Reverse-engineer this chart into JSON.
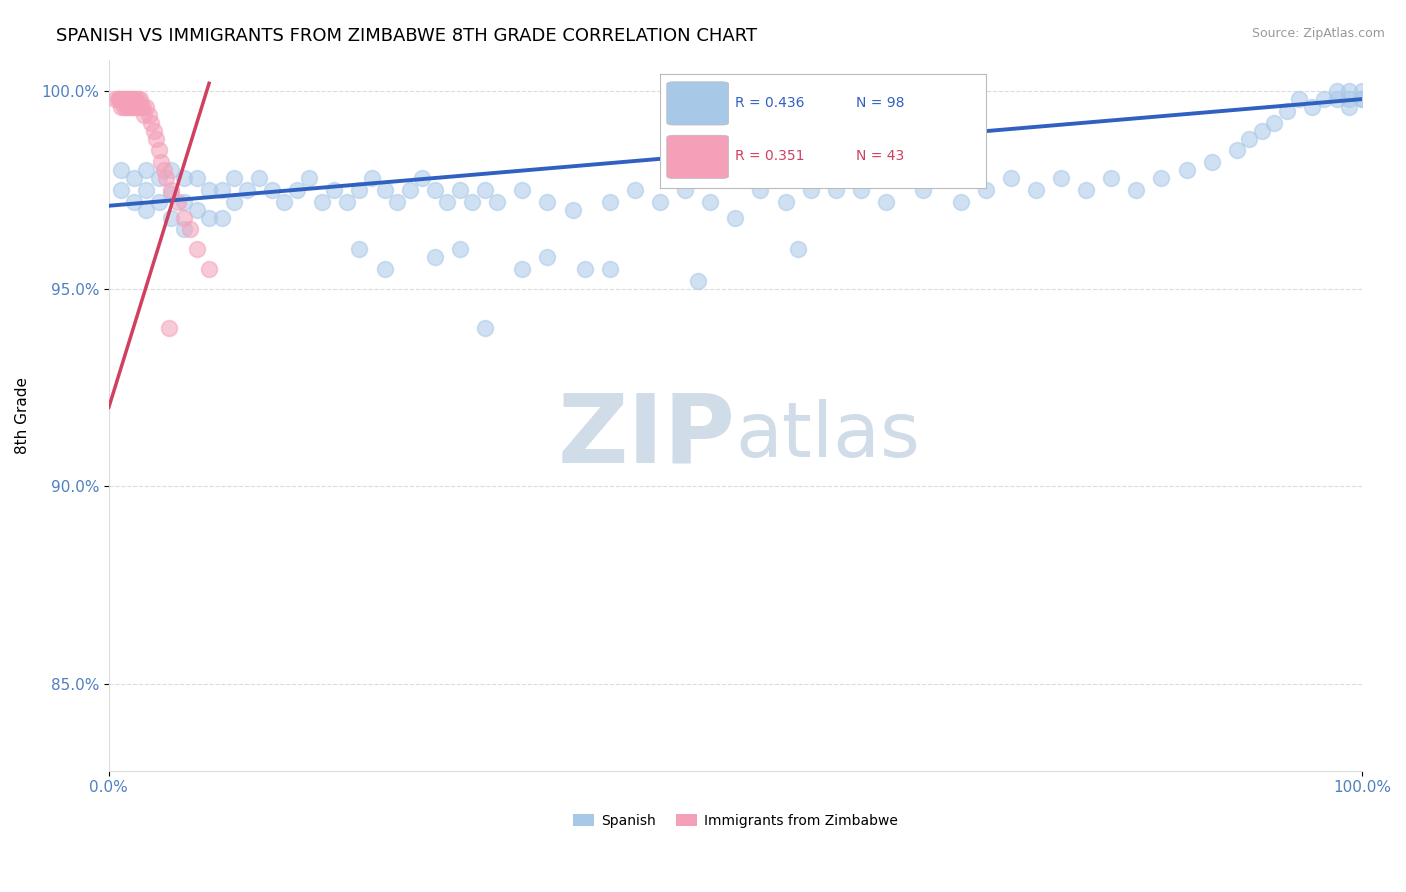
{
  "title": "SPANISH VS IMMIGRANTS FROM ZIMBABWE 8TH GRADE CORRELATION CHART",
  "source_text": "Source: ZipAtlas.com",
  "ylabel": "8th Grade",
  "xlim": [
    0.0,
    1.0
  ],
  "ylim": [
    0.828,
    1.008
  ],
  "yticks": [
    0.85,
    0.9,
    0.95,
    1.0
  ],
  "ytick_labels": [
    "85.0%",
    "90.0%",
    "95.0%",
    "100.0%"
  ],
  "xticks": [
    0.0,
    1.0
  ],
  "xtick_labels": [
    "0.0%",
    "100.0%"
  ],
  "blue_R": 0.436,
  "blue_N": 98,
  "pink_R": 0.351,
  "pink_N": 43,
  "blue_color": "#a8c8e8",
  "pink_color": "#f4a0b8",
  "blue_line_color": "#3060c0",
  "pink_line_color": "#d04060",
  "legend_blue_label": "Spanish",
  "legend_pink_label": "Immigrants from Zimbabwe",
  "watermark_zip": "ZIP",
  "watermark_atlas": "atlas",
  "watermark_color": "#d0dce8",
  "title_fontsize": 13,
  "tick_label_color": "#5080c0",
  "grid_color": "#cccccc",
  "background_color": "#ffffff",
  "blue_scatter_x": [
    0.01,
    0.01,
    0.02,
    0.02,
    0.03,
    0.03,
    0.03,
    0.04,
    0.04,
    0.05,
    0.05,
    0.05,
    0.06,
    0.06,
    0.06,
    0.07,
    0.07,
    0.08,
    0.08,
    0.09,
    0.09,
    0.1,
    0.1,
    0.11,
    0.12,
    0.13,
    0.14,
    0.15,
    0.16,
    0.17,
    0.18,
    0.19,
    0.2,
    0.21,
    0.22,
    0.23,
    0.24,
    0.25,
    0.26,
    0.27,
    0.28,
    0.29,
    0.3,
    0.31,
    0.33,
    0.35,
    0.37,
    0.4,
    0.42,
    0.44,
    0.46,
    0.48,
    0.5,
    0.52,
    0.54,
    0.56,
    0.58,
    0.6,
    0.62,
    0.65,
    0.68,
    0.7,
    0.72,
    0.74,
    0.76,
    0.78,
    0.8,
    0.82,
    0.84,
    0.86,
    0.88,
    0.9,
    0.91,
    0.92,
    0.93,
    0.94,
    0.95,
    0.96,
    0.97,
    0.98,
    0.98,
    0.99,
    0.99,
    0.99,
    1.0,
    1.0,
    1.0,
    0.47,
    0.55,
    0.3,
    0.2,
    0.22,
    0.28,
    0.33,
    0.35,
    0.38,
    0.4,
    0.26
  ],
  "blue_scatter_y": [
    0.98,
    0.975,
    0.978,
    0.972,
    0.98,
    0.975,
    0.97,
    0.978,
    0.972,
    0.98,
    0.974,
    0.968,
    0.978,
    0.972,
    0.965,
    0.978,
    0.97,
    0.975,
    0.968,
    0.975,
    0.968,
    0.978,
    0.972,
    0.975,
    0.978,
    0.975,
    0.972,
    0.975,
    0.978,
    0.972,
    0.975,
    0.972,
    0.975,
    0.978,
    0.975,
    0.972,
    0.975,
    0.978,
    0.975,
    0.972,
    0.975,
    0.972,
    0.975,
    0.972,
    0.975,
    0.972,
    0.97,
    0.972,
    0.975,
    0.972,
    0.975,
    0.972,
    0.968,
    0.975,
    0.972,
    0.975,
    0.975,
    0.975,
    0.972,
    0.975,
    0.972,
    0.975,
    0.978,
    0.975,
    0.978,
    0.975,
    0.978,
    0.975,
    0.978,
    0.98,
    0.982,
    0.985,
    0.988,
    0.99,
    0.992,
    0.995,
    0.998,
    0.996,
    0.998,
    1.0,
    0.998,
    1.0,
    0.998,
    0.996,
    1.0,
    0.998,
    0.998,
    0.952,
    0.96,
    0.94,
    0.96,
    0.955,
    0.96,
    0.955,
    0.958,
    0.955,
    0.955,
    0.958
  ],
  "pink_scatter_x": [
    0.005,
    0.007,
    0.008,
    0.009,
    0.01,
    0.01,
    0.012,
    0.012,
    0.013,
    0.014,
    0.015,
    0.015,
    0.016,
    0.017,
    0.018,
    0.018,
    0.019,
    0.02,
    0.02,
    0.022,
    0.022,
    0.023,
    0.024,
    0.025,
    0.026,
    0.027,
    0.028,
    0.03,
    0.032,
    0.034,
    0.036,
    0.038,
    0.04,
    0.042,
    0.044,
    0.046,
    0.05,
    0.055,
    0.06,
    0.065,
    0.07,
    0.08,
    0.048
  ],
  "pink_scatter_y": [
    0.998,
    0.998,
    0.998,
    0.998,
    0.998,
    0.996,
    0.998,
    0.996,
    0.998,
    0.996,
    0.998,
    0.996,
    0.998,
    0.996,
    0.998,
    0.996,
    0.998,
    0.998,
    0.996,
    0.998,
    0.996,
    0.998,
    0.996,
    0.998,
    0.996,
    0.996,
    0.994,
    0.996,
    0.994,
    0.992,
    0.99,
    0.988,
    0.985,
    0.982,
    0.98,
    0.978,
    0.975,
    0.972,
    0.968,
    0.965,
    0.96,
    0.955,
    0.94
  ]
}
